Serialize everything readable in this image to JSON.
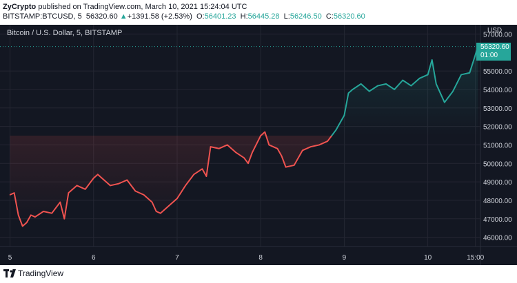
{
  "header": {
    "publisher": "ZyCrypto",
    "published_text": "published on TradingView.com, March 10, 2021 15:24:04 UTC",
    "symbol": "BITSTAMP:BTCUSD, 5",
    "last": "56320.60",
    "change_arrow": "▲",
    "change": "+1391.58 (+2.53%)",
    "o_label": "O:",
    "o": "56401.23",
    "h_label": "H:",
    "h": "56445.28",
    "l_label": "L:",
    "l": "56246.50",
    "c_label": "C:",
    "c": "56320.60"
  },
  "chart": {
    "legend": "Bitcoin / U.S. Dollar, 5, BITSTAMP",
    "currency": "USD",
    "price_label": "56320.60",
    "countdown": "01:00"
  },
  "footer": {
    "brand": "TradingView"
  },
  "colors": {
    "background": "#131722",
    "up": "#26a69a",
    "down": "#ef5350",
    "text": "#d1d4dc",
    "grid": "#242733"
  },
  "chart_data": {
    "type": "line",
    "title": "Bitcoin / U.S. Dollar, 5, BITSTAMP",
    "x": [
      5.0,
      5.05,
      5.1,
      5.15,
      5.2,
      5.25,
      5.3,
      5.4,
      5.5,
      5.6,
      5.65,
      5.7,
      5.8,
      5.9,
      6.0,
      6.05,
      6.1,
      6.2,
      6.3,
      6.4,
      6.5,
      6.6,
      6.7,
      6.75,
      6.8,
      6.9,
      7.0,
      7.1,
      7.2,
      7.3,
      7.35,
      7.4,
      7.5,
      7.6,
      7.7,
      7.8,
      7.85,
      7.9,
      8.0,
      8.05,
      8.1,
      8.2,
      8.25,
      8.3,
      8.4,
      8.5,
      8.6,
      8.7,
      8.8,
      8.85,
      8.9,
      9.0,
      9.05,
      9.1,
      9.2,
      9.3,
      9.4,
      9.5,
      9.6,
      9.7,
      9.8,
      9.9,
      10.0,
      10.05,
      10.1,
      10.15,
      10.2,
      10.3,
      10.4,
      10.5,
      10.55,
      10.6
    ],
    "values": [
      48300,
      48400,
      47200,
      46600,
      46800,
      47200,
      47100,
      47400,
      47300,
      47900,
      47000,
      48400,
      48800,
      48600,
      49200,
      49400,
      49200,
      48800,
      48900,
      49100,
      48500,
      48300,
      47900,
      47400,
      47300,
      47700,
      48100,
      48800,
      49400,
      49700,
      49300,
      50900,
      50800,
      51000,
      50600,
      50300,
      50000,
      50600,
      51500,
      51700,
      51000,
      50800,
      50400,
      49800,
      49900,
      50700,
      50900,
      51000,
      51200,
      51500,
      51800,
      52600,
      53800,
      54000,
      54300,
      53900,
      54200,
      54300,
      54000,
      54500,
      54200,
      54600,
      54800,
      55600,
      54300,
      53800,
      53300,
      53900,
      54800,
      54900,
      55600,
      56320.6
    ],
    "x_ticks": [
      "5",
      "6",
      "7",
      "8",
      "9",
      "10",
      "15:00"
    ],
    "x_tick_values": [
      5,
      6,
      7,
      8,
      9,
      10,
      10.57
    ],
    "y_ticks": [
      46000,
      47000,
      48000,
      49000,
      50000,
      51000,
      52000,
      53000,
      54000,
      55000,
      57000
    ],
    "ylim": [
      45500,
      57500
    ],
    "xlim": [
      4.88,
      10.63
    ],
    "color_change_x": 8.85,
    "last_price": 56320.6,
    "grid": true
  }
}
